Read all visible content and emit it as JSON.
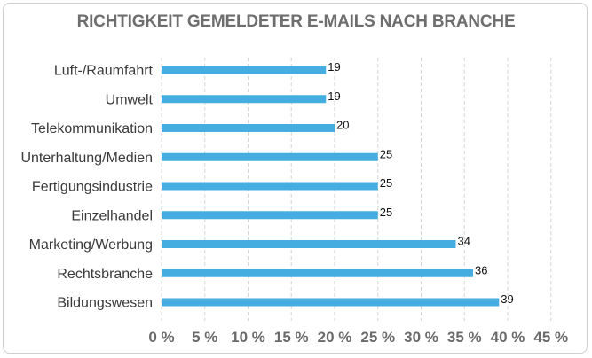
{
  "chart_data": {
    "type": "bar",
    "orientation": "horizontal",
    "title": "RICHTIGKEIT GEMELDETER E-MAILS NACH BRANCHE",
    "categories": [
      "Luft-/Raumfahrt",
      "Umwelt",
      "Telekommunikation",
      "Unterhaltung/Medien",
      "Fertigungsindustrie",
      "Einzelhandel",
      "Marketing/Werbung",
      "Rechtsbranche",
      "Bildungswesen"
    ],
    "values": [
      19,
      19,
      20,
      25,
      25,
      25,
      34,
      36,
      39
    ],
    "value_labels": [
      "19",
      "19",
      "20",
      "25",
      "25",
      "25",
      "34",
      "36",
      "39"
    ],
    "xlim": [
      0,
      45
    ],
    "x_ticks": [
      "0 %",
      "5 %",
      "10 %",
      "15 %",
      "20 %",
      "25 %",
      "30 %",
      "35 %",
      "40 %",
      "45 %"
    ],
    "grid": "vertical dashed",
    "bar_color": "#45ade0",
    "legend": "none"
  }
}
